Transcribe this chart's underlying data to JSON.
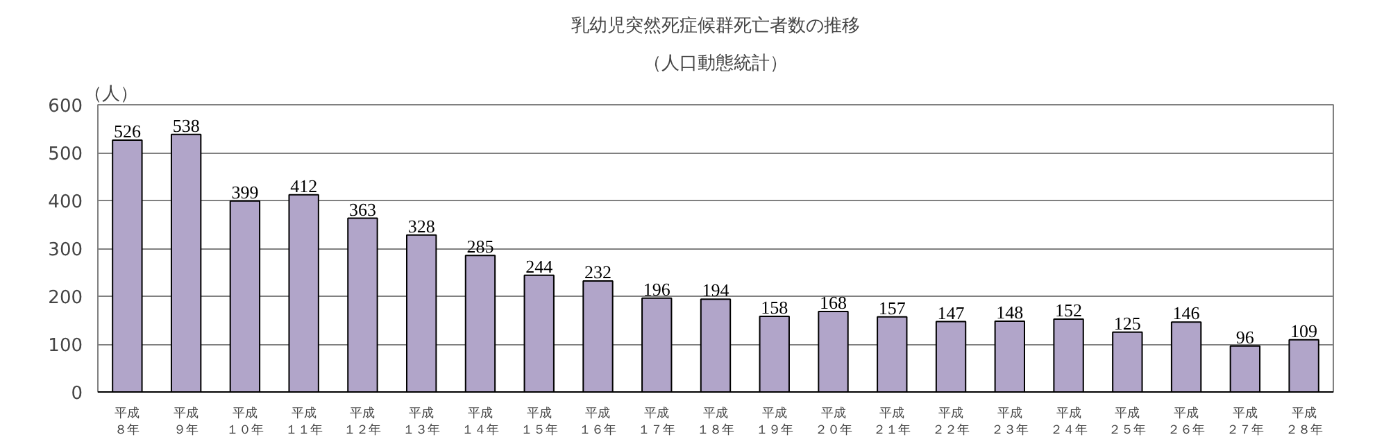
{
  "chart_data": {
    "type": "bar",
    "title": "乳幼児突然死症候群死亡者数の推移",
    "subtitle": "（人口動態統計）",
    "ylabel": "（人）",
    "categories": [
      "平成８年",
      "平成９年",
      "平成１０年",
      "平成１１年",
      "平成１２年",
      "平成１３年",
      "平成１４年",
      "平成１５年",
      "平成１６年",
      "平成１７年",
      "平成１８年",
      "平成１９年",
      "平成２０年",
      "平成２１年",
      "平成２２年",
      "平成２３年",
      "平成２４年",
      "平成２５年",
      "平成２６年",
      "平成２７年",
      "平成２８年"
    ],
    "values": [
      526,
      538,
      399,
      412,
      363,
      328,
      285,
      244,
      232,
      196,
      194,
      158,
      168,
      157,
      147,
      148,
      152,
      125,
      146,
      96,
      109
    ],
    "color": "#b1a5c9",
    "ylim": [
      0,
      600
    ],
    "yticks": [
      0,
      100,
      200,
      300,
      400,
      500,
      600
    ],
    "grid": "y",
    "data_labels": true
  }
}
